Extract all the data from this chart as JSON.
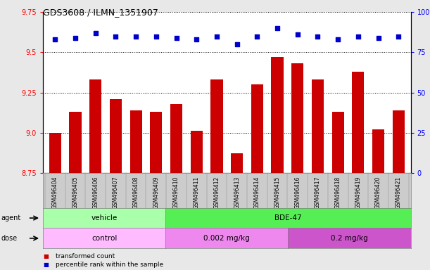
{
  "title": "GDS3608 / ILMN_1351907",
  "samples": [
    "GSM496404",
    "GSM496405",
    "GSM496406",
    "GSM496407",
    "GSM496408",
    "GSM496409",
    "GSM496410",
    "GSM496411",
    "GSM496412",
    "GSM496413",
    "GSM496414",
    "GSM496415",
    "GSM496416",
    "GSM496417",
    "GSM496418",
    "GSM496419",
    "GSM496420",
    "GSM496421"
  ],
  "bar_values": [
    9.0,
    9.13,
    9.33,
    9.21,
    9.14,
    9.13,
    9.18,
    9.01,
    9.33,
    8.87,
    9.3,
    9.47,
    9.43,
    9.33,
    9.13,
    9.38,
    9.02,
    9.14
  ],
  "dot_values": [
    83,
    84,
    87,
    85,
    85,
    85,
    84,
    83,
    85,
    80,
    85,
    90,
    86,
    85,
    83,
    85,
    84,
    85
  ],
  "bar_color": "#cc0000",
  "dot_color": "#0000cc",
  "ylim_left": [
    8.75,
    9.75
  ],
  "ylim_right": [
    0,
    100
  ],
  "yticks_left": [
    8.75,
    9.0,
    9.25,
    9.5,
    9.75
  ],
  "yticks_right": [
    0,
    25,
    50,
    75,
    100
  ],
  "agent_vehicle_n": 6,
  "agent_bde_n": 12,
  "agent_vehicle_label": "vehicle",
  "agent_bde_label": "BDE-47",
  "dose_control_n": 6,
  "dose_002_n": 6,
  "dose_02_n": 6,
  "dose_control_label": "control",
  "dose_002_label": "0.002 mg/kg",
  "dose_02_label": "0.2 mg/kg",
  "agent_vehicle_color": "#aaffaa",
  "agent_bde_color": "#55ee55",
  "dose_control_color": "#ffbbff",
  "dose_002_color": "#ee88ee",
  "dose_02_color": "#cc55cc",
  "legend_bar_label": "transformed count",
  "legend_dot_label": "percentile rank within the sample",
  "background_color": "#e8e8e8",
  "plot_bg_color": "#ffffff",
  "xticklabel_bg": "#cccccc"
}
